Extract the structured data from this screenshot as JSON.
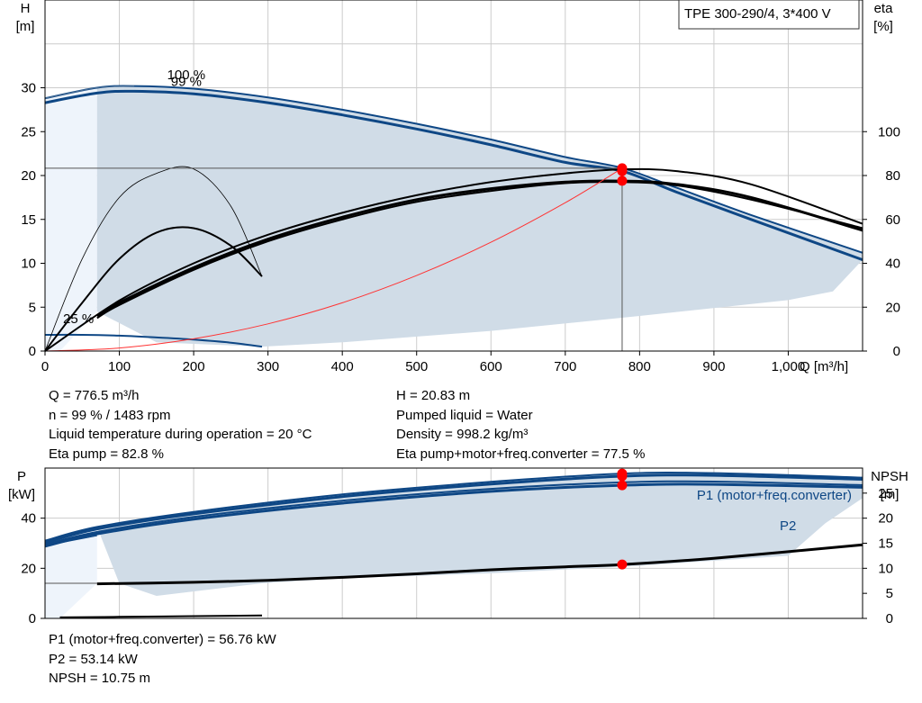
{
  "pump_model": "TPE 300-290/4, 3*400 V",
  "operating_point": {
    "q_label": "Q = 776.5 m³/h",
    "n_label": "n = 99 % / 1483 rpm",
    "temp_label": "Liquid temperature during operation = 20 °C",
    "eta_pump_label": "Eta pump = 82.8 %",
    "h_label": "H = 20.83 m",
    "liquid_label": "Pumped liquid = Water",
    "density_label": "Density = 998.2 kg/m³",
    "eta_total_label": "Eta pump+motor+freq.converter = 77.5 %"
  },
  "power_results": {
    "p1_label": "P1 (motor+freq.converter) = 56.76 kW",
    "p2_label": "P2 = 53.14 kW",
    "npsh_label": "NPSH = 10.75 m"
  },
  "colors": {
    "pump_curve": "#0e4785",
    "eta_curve": "#000000",
    "envelope": "#d0dce7",
    "envelope_light": "#eef4fb",
    "grid": "#cccccc",
    "system_curve": "#ff3333",
    "duty_point": "#ff0000",
    "p1_label": "#0e4785"
  },
  "chart_data": [
    {
      "type": "line",
      "name": "head-efficiency",
      "x_axis": {
        "label": "Q [m³/h]",
        "range": [
          0,
          1100
        ],
        "ticks": [
          0,
          100,
          200,
          300,
          400,
          500,
          600,
          700,
          800,
          900,
          1000
        ],
        "tick_labels": [
          "0",
          "100",
          "200",
          "300",
          "400",
          "500",
          "600",
          "700",
          "800",
          "900",
          "1,000"
        ]
      },
      "y_left": {
        "label_top": "H",
        "label_unit": "[m]",
        "range": [
          0,
          40
        ],
        "ticks": [
          0,
          5,
          10,
          15,
          20,
          25,
          30
        ]
      },
      "y_right": {
        "label_top": "eta",
        "label_unit": "[%]",
        "range": [
          0,
          160
        ],
        "ticks": [
          0,
          20,
          40,
          60,
          80,
          100
        ]
      },
      "grid": true,
      "annotations": [
        {
          "text": "100 %",
          "x": 190,
          "y": 31.0
        },
        {
          "text": "99 %",
          "x": 190,
          "y": 30.2
        },
        {
          "text": "25 %",
          "x": 45,
          "y": 3.2
        }
      ],
      "head_curves": [
        {
          "speed": "100 %",
          "x": [
            0,
            70,
            120,
            200,
            300,
            400,
            500,
            600,
            700,
            776.5,
            850,
            950,
            1100
          ],
          "y": [
            28.8,
            30.0,
            30.2,
            29.9,
            28.9,
            27.5,
            25.9,
            24.1,
            22.1,
            20.85,
            18.6,
            15.5,
            11.2
          ]
        },
        {
          "speed": "99 %",
          "x": [
            0,
            70,
            120,
            200,
            300,
            400,
            500,
            600,
            700,
            776.5,
            850,
            950,
            1100
          ],
          "y": [
            28.3,
            29.4,
            29.6,
            29.3,
            28.3,
            26.9,
            25.3,
            23.5,
            21.5,
            20.5,
            18.1,
            15.0,
            10.4
          ]
        },
        {
          "speed": "25 %",
          "x": [
            0,
            50,
            100,
            150,
            200,
            250,
            292
          ],
          "y": [
            1.85,
            1.85,
            1.75,
            1.55,
            1.3,
            0.95,
            0.5
          ]
        }
      ],
      "eta_curves": [
        {
          "x": [
            0,
            100,
            200,
            300,
            400,
            500,
            600,
            700,
            776.5,
            850,
            950,
            1100
          ],
          "y": [
            0,
            23,
            40,
            53,
            63,
            71,
            77,
            81,
            82.8,
            82.0,
            76,
            58
          ]
        },
        {
          "x": [
            70,
            100,
            200,
            300,
            400,
            500,
            600,
            700,
            776.5,
            850,
            950,
            1100
          ],
          "y": [
            16,
            22,
            38,
            51,
            61,
            69,
            74,
            77,
            77.5,
            76.0,
            70,
            55
          ]
        },
        {
          "x": [
            70,
            100,
            200,
            300,
            400,
            500,
            600,
            700,
            776.5,
            850,
            950,
            1100
          ],
          "y": [
            15,
            21,
            37,
            50,
            60,
            68,
            73,
            76.5,
            77.0,
            75.5,
            69,
            56
          ]
        },
        {
          "x": [
            0,
            50,
            100,
            150,
            200,
            250,
            292
          ],
          "y": [
            0,
            42,
            70,
            81,
            83,
            66,
            34
          ]
        },
        {
          "x": [
            0,
            50,
            100,
            150,
            200,
            250,
            292
          ],
          "y": [
            0,
            22,
            42,
            54,
            56,
            48,
            34
          ]
        }
      ],
      "system_curve": {
        "x": [
          0,
          100,
          200,
          300,
          400,
          500,
          600,
          700,
          776.5
        ],
        "y": [
          0,
          0.35,
          1.4,
          3.1,
          5.5,
          8.6,
          12.4,
          16.9,
          20.83
        ]
      },
      "envelope": {
        "x": [
          70,
          150,
          292,
          400,
          600,
          800,
          1000,
          1060,
          1100,
          1100,
          950,
          850,
          776.5,
          700,
          600,
          500,
          400,
          300,
          200,
          120,
          70
        ],
        "y": [
          4.5,
          1.0,
          0.5,
          1.0,
          2.3,
          4.0,
          5.8,
          6.8,
          10.4,
          11.2,
          15.5,
          18.6,
          20.85,
          22.1,
          24.1,
          25.9,
          27.5,
          28.9,
          29.9,
          30.2,
          30.0
        ]
      },
      "duty_points": [
        {
          "x": 776.5,
          "y": 20.83
        },
        {
          "x": 776.5,
          "y": 20.5
        },
        {
          "x": 776.5,
          "y": 19.4
        }
      ],
      "duty_guides": {
        "x": 776.5,
        "h": 20.83
      }
    },
    {
      "type": "line",
      "name": "power-npsh",
      "x_axis": {
        "range": [
          0,
          1100
        ]
      },
      "y_left": {
        "label_top": "P",
        "label_unit": "[kW]",
        "range": [
          0,
          60
        ],
        "ticks": [
          0,
          20,
          40
        ]
      },
      "y_right": {
        "label_top": "NPSH",
        "label_unit": "[m]",
        "range": [
          0,
          30
        ],
        "ticks": [
          0,
          5,
          10,
          15,
          20,
          25
        ]
      },
      "grid": true,
      "series_labels": [
        {
          "text": "P1 (motor+freq.converter)",
          "x": 1090,
          "y": 62.5
        },
        {
          "text": "P2",
          "x": 1080,
          "y": 49.5
        }
      ],
      "power_curves": [
        {
          "name": "P1-100",
          "x": [
            0,
            70,
            200,
            400,
            600,
            776.5,
            900,
            1100
          ],
          "y": [
            31.0,
            36.5,
            42.5,
            49.5,
            54.5,
            57.8,
            58.0,
            56.2
          ]
        },
        {
          "name": "P1-99",
          "x": [
            0,
            70,
            200,
            400,
            600,
            776.5,
            900,
            1100
          ],
          "y": [
            30.2,
            35.7,
            41.7,
            48.6,
            53.6,
            56.76,
            57.1,
            55.5
          ]
        },
        {
          "name": "P2-100",
          "x": [
            0,
            70,
            200,
            400,
            600,
            776.5,
            900,
            1100
          ],
          "y": [
            29.5,
            34.5,
            40.5,
            47.0,
            51.7,
            54.3,
            54.6,
            53.2
          ]
        },
        {
          "name": "P2-99",
          "x": [
            0,
            70,
            200,
            400,
            600,
            776.5,
            900,
            1100
          ],
          "y": [
            28.8,
            33.7,
            39.6,
            46.0,
            50.7,
            53.14,
            53.5,
            52.3
          ]
        },
        {
          "name": "P-25",
          "x": [
            20,
            100,
            200,
            292
          ],
          "y": [
            0.4,
            0.6,
            0.9,
            1.2
          ]
        }
      ],
      "envelope": {
        "x": [
          70,
          100,
          150,
          292,
          400,
          600,
          800,
          1000,
          1050,
          1100,
          1100,
          900,
          776.5,
          600,
          400,
          200,
          70
        ],
        "y": [
          36.5,
          14,
          9,
          14,
          16,
          18,
          21,
          25,
          38,
          48,
          56.2,
          58.0,
          57.8,
          54.5,
          49.5,
          42.5,
          36.5
        ]
      },
      "npsh_curve": {
        "x": [
          70,
          200,
          300,
          400,
          500,
          600,
          700,
          776.5,
          900,
          1100
        ],
        "y": [
          6.9,
          7.2,
          7.6,
          8.2,
          8.9,
          9.7,
          10.3,
          10.75,
          12.0,
          14.7
        ]
      },
      "duty_points": [
        {
          "x": 776.5,
          "y": 57.8
        },
        {
          "x": 776.5,
          "y": 56.76
        },
        {
          "x": 776.5,
          "y": 53.14
        },
        {
          "x": 776.5,
          "y": 21.5
        }
      ],
      "guide_level": 14
    }
  ]
}
